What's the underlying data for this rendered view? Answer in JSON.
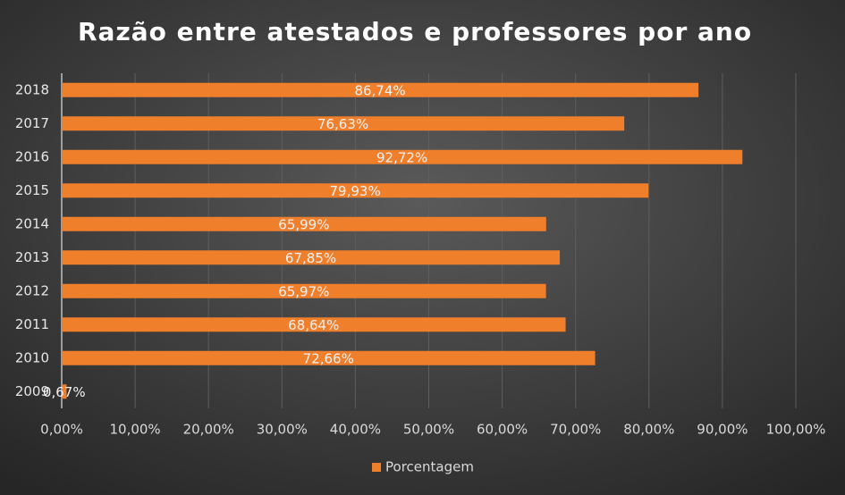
{
  "chart_data": {
    "type": "bar",
    "orientation": "horizontal",
    "title": "Razão entre atestados e professores por ano",
    "categories": [
      "2009",
      "2010",
      "2011",
      "2012",
      "2013",
      "2014",
      "2015",
      "2016",
      "2017",
      "2018"
    ],
    "series": [
      {
        "name": "Porcentagem",
        "color": "#f07f2c",
        "values": [
          0.67,
          72.66,
          68.64,
          65.97,
          67.85,
          65.99,
          79.93,
          92.72,
          76.63,
          86.74
        ],
        "value_labels": [
          "0,67%",
          "72,66%",
          "68,64%",
          "65,97%",
          "67,85%",
          "65,99%",
          "79,93%",
          "92,72%",
          "76,63%",
          "86,74%"
        ]
      }
    ],
    "xlim": [
      0,
      100
    ],
    "xticks": [
      {
        "value": 0,
        "label": "0,00%"
      },
      {
        "value": 10,
        "label": "10,00%"
      },
      {
        "value": 20,
        "label": "20,00%"
      },
      {
        "value": 30,
        "label": "30,00%"
      },
      {
        "value": 40,
        "label": "40,00%"
      },
      {
        "value": 50,
        "label": "50,00%"
      },
      {
        "value": 60,
        "label": "60,00%"
      },
      {
        "value": 70,
        "label": "70,00%"
      },
      {
        "value": 80,
        "label": "80,00%"
      },
      {
        "value": 90,
        "label": "90,00%"
      },
      {
        "value": 100,
        "label": "100,00%"
      }
    ],
    "grid": true,
    "legend": "bottom"
  }
}
